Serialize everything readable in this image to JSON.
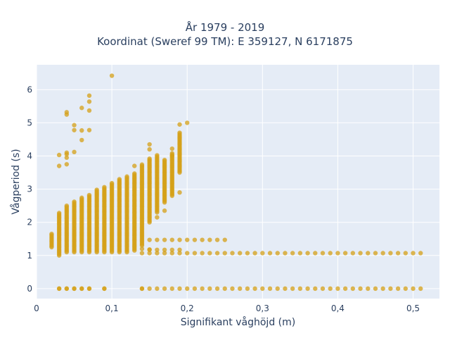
{
  "chart_data": {
    "type": "scatter",
    "title_lines": [
      "År 1979 - 2019",
      "Koordinat (Sweref 99 TM): E 359127, N 6171875"
    ],
    "xlabel": "Signifikant våghöjd (m)",
    "ylabel": "Vågperiod (s)",
    "xlim": [
      0,
      0.535
    ],
    "ylim": [
      -0.3,
      6.75
    ],
    "x_ticks": [
      0,
      0.1,
      0.2,
      0.3,
      0.4,
      0.5
    ],
    "x_tick_labels": [
      "0",
      "0,1",
      "0,2",
      "0,3",
      "0,4",
      "0,5"
    ],
    "y_ticks": [
      0,
      1,
      2,
      3,
      4,
      5,
      6
    ],
    "y_tick_labels": [
      "0",
      "1",
      "2",
      "3",
      "4",
      "5",
      "6"
    ],
    "grid": true,
    "legend": "none",
    "colors": {
      "marker": "#D4A017",
      "plot_bg": "#E5ECF6",
      "grid": "#ffffff",
      "text": "#2a3f5f"
    },
    "vertical_ranges": [
      {
        "x": 0.02,
        "y": [
          1.25,
          1.65
        ]
      },
      {
        "x": 0.03,
        "y": [
          1.0,
          2.3
        ]
      },
      {
        "x": 0.04,
        "y": [
          1.1,
          2.5
        ]
      },
      {
        "x": 0.05,
        "y": [
          1.1,
          2.62
        ]
      },
      {
        "x": 0.06,
        "y": [
          1.1,
          2.75
        ]
      },
      {
        "x": 0.07,
        "y": [
          1.1,
          2.85
        ]
      },
      {
        "x": 0.08,
        "y": [
          1.1,
          2.98
        ]
      },
      {
        "x": 0.09,
        "y": [
          1.1,
          3.08
        ]
      },
      {
        "x": 0.1,
        "y": [
          1.1,
          3.18
        ]
      },
      {
        "x": 0.11,
        "y": [
          1.1,
          3.3
        ]
      },
      {
        "x": 0.12,
        "y": [
          1.1,
          3.38
        ]
      },
      {
        "x": 0.13,
        "y": [
          1.15,
          3.48
        ]
      },
      {
        "x": 0.14,
        "y": [
          1.3,
          3.75
        ]
      },
      {
        "x": 0.15,
        "y": [
          2.0,
          3.95
        ]
      },
      {
        "x": 0.16,
        "y": [
          2.3,
          4.05
        ]
      },
      {
        "x": 0.17,
        "y": [
          2.6,
          3.9
        ]
      },
      {
        "x": 0.18,
        "y": [
          2.8,
          4.1
        ]
      },
      {
        "x": 0.19,
        "y": [
          3.5,
          4.7
        ]
      }
    ],
    "horizontal_bands": [
      {
        "y": 0.0,
        "x": [
          0.03,
          0.51
        ],
        "step": 0.01,
        "skip": [
          0.08,
          0.1,
          0.11,
          0.12,
          0.13
        ]
      },
      {
        "y": 1.07,
        "x": [
          0.15,
          0.51
        ],
        "step": 0.01
      },
      {
        "y": 1.17,
        "x": [
          0.15,
          0.19
        ],
        "step": 0.01
      },
      {
        "y": 1.47,
        "x": [
          0.15,
          0.24
        ],
        "step": 0.01
      }
    ],
    "points": [
      [
        0.03,
        0.0
      ],
      [
        0.04,
        0.0
      ],
      [
        0.05,
        0.0
      ],
      [
        0.06,
        0.0
      ],
      [
        0.07,
        0.0
      ],
      [
        0.09,
        0.0
      ],
      [
        0.14,
        0.0
      ],
      [
        0.14,
        1.2
      ],
      [
        0.15,
        1.18
      ],
      [
        0.14,
        1.07
      ],
      [
        0.25,
        1.47
      ],
      [
        0.03,
        3.7
      ],
      [
        0.03,
        4.03
      ],
      [
        0.04,
        3.75
      ],
      [
        0.04,
        3.95
      ],
      [
        0.04,
        4.05
      ],
      [
        0.04,
        4.1
      ],
      [
        0.05,
        4.12
      ],
      [
        0.04,
        5.25
      ],
      [
        0.04,
        5.32
      ],
      [
        0.05,
        4.78
      ],
      [
        0.05,
        4.93
      ],
      [
        0.06,
        4.48
      ],
      [
        0.06,
        4.77
      ],
      [
        0.06,
        5.45
      ],
      [
        0.07,
        4.78
      ],
      [
        0.07,
        5.37
      ],
      [
        0.07,
        5.64
      ],
      [
        0.07,
        5.82
      ],
      [
        0.1,
        6.42
      ],
      [
        0.13,
        3.7
      ],
      [
        0.15,
        4.35
      ],
      [
        0.15,
        4.2
      ],
      [
        0.16,
        2.15
      ],
      [
        0.17,
        2.35
      ],
      [
        0.18,
        4.22
      ],
      [
        0.18,
        4.0
      ],
      [
        0.19,
        2.9
      ],
      [
        0.19,
        4.95
      ],
      [
        0.2,
        5.0
      ]
    ]
  }
}
